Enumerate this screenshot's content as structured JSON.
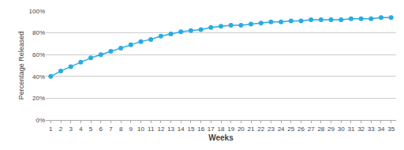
{
  "chart_data": {
    "type": "line",
    "xlabel": "Weeks",
    "ylabel": "Percentage Released",
    "x": [
      1,
      2,
      3,
      4,
      5,
      6,
      7,
      8,
      9,
      10,
      11,
      12,
      13,
      14,
      15,
      16,
      17,
      18,
      19,
      20,
      21,
      22,
      23,
      24,
      25,
      26,
      27,
      28,
      29,
      30,
      31,
      32,
      33,
      34,
      35
    ],
    "values": [
      40,
      45,
      49,
      53,
      57,
      60,
      63,
      66,
      69,
      72,
      74,
      77,
      79,
      81,
      82,
      83,
      85,
      86,
      87,
      87,
      88,
      89,
      90,
      90,
      91,
      91,
      92,
      92,
      92,
      92,
      93,
      93,
      93,
      94,
      94
    ],
    "color": "#29ABE2",
    "marker": "circle",
    "xlim": [
      0.5,
      35.5
    ],
    "xticks": [
      1,
      2,
      3,
      4,
      5,
      6,
      7,
      8,
      9,
      10,
      11,
      12,
      13,
      14,
      15,
      16,
      17,
      18,
      19,
      20,
      21,
      22,
      23,
      24,
      25,
      26,
      27,
      28,
      29,
      30,
      31,
      32,
      33,
      34,
      35
    ],
    "ylim": [
      0,
      100
    ],
    "yticks": [
      {
        "value": 0,
        "label": "0%"
      },
      {
        "value": 20,
        "label": "20%"
      },
      {
        "value": 40,
        "label": "40%"
      },
      {
        "value": 60,
        "label": "60%"
      },
      {
        "value": 80,
        "label": "80%"
      },
      {
        "value": 100,
        "label": "100%"
      }
    ],
    "grid": true
  }
}
